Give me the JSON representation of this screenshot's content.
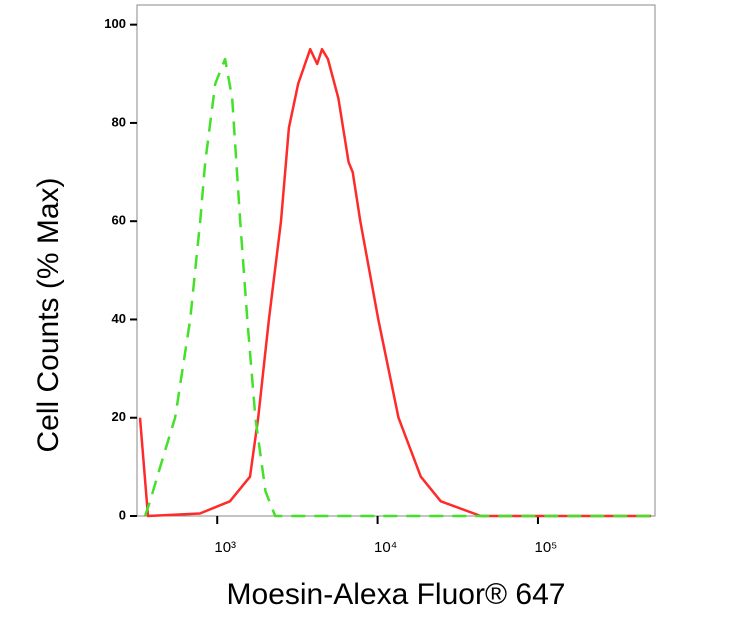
{
  "chart_data": {
    "type": "line",
    "xlabel": "Moesin-Alexa Fluor® 647",
    "ylabel": "Cell Counts (% Max)",
    "xscale": "log",
    "xlim": [
      316,
      537000
    ],
    "xticks": [
      {
        "value": 1000,
        "label": "10³"
      },
      {
        "value": 10000,
        "label": "10⁴"
      },
      {
        "value": 100000,
        "label": "10⁵"
      }
    ],
    "ylim": [
      0,
      104
    ],
    "yticks": [
      0,
      20,
      40,
      60,
      80,
      100
    ],
    "series": [
      {
        "color": "#ff2a2a",
        "dash": false,
        "x": [
          330,
          370,
          780,
          1200,
          1600,
          1800,
          2100,
          2500,
          2800,
          3200,
          3800,
          4200,
          4500,
          4900,
          5700,
          6600,
          7000,
          7800,
          10100,
          13500,
          18600,
          24800,
          44000,
          508000
        ],
        "values": [
          20,
          0,
          0.5,
          3,
          8,
          20,
          40,
          60,
          79,
          88,
          95,
          92,
          95,
          93,
          85,
          72,
          70,
          60,
          40,
          20,
          8,
          3,
          0,
          0
        ]
      },
      {
        "color": "#44e02a",
        "dash": true,
        "x": [
          355,
          381,
          441,
          546,
          678,
          783,
          841,
          972,
          1120,
          1240,
          1390,
          1540,
          1730,
          2000,
          2300,
          508000
        ],
        "values": [
          0,
          3,
          10,
          20,
          40,
          60,
          72,
          88,
          93,
          85,
          60,
          40,
          20,
          5,
          0,
          0
        ]
      }
    ]
  }
}
